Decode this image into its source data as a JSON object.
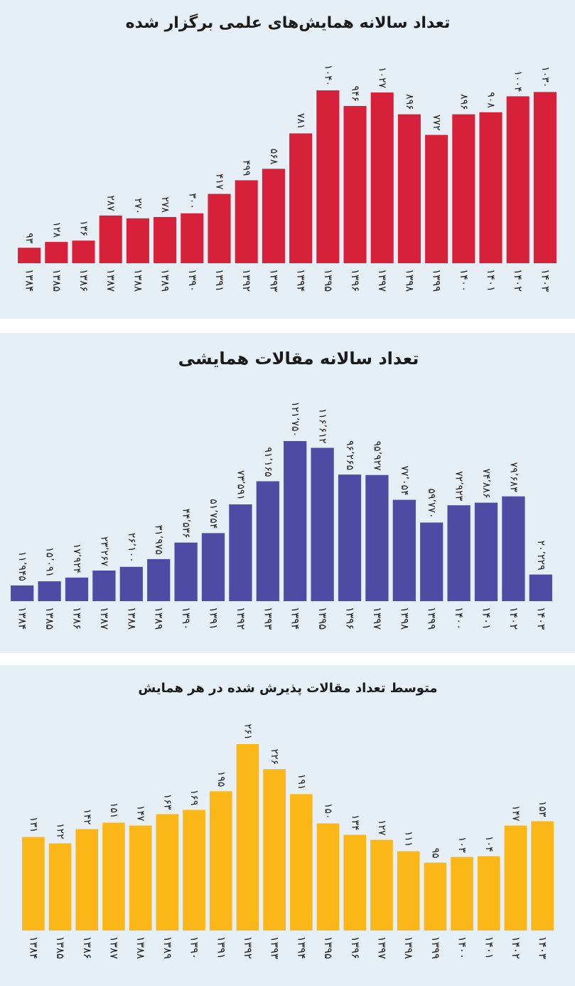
{
  "chart_data": [
    {
      "type": "bar",
      "title": "تعداد سالانه همایش‌های علمی برگزار شده",
      "color": "#d7203a",
      "categories": [
        "۱۳۸۴",
        "۱۳۸۵",
        "۱۳۸۶",
        "۱۳۸۷",
        "۱۳۸۸",
        "۱۳۸۹",
        "۱۳۹۰",
        "۱۳۹۱",
        "۱۳۹۲",
        "۱۳۹۳",
        "۱۳۹۴",
        "۱۳۹۵",
        "۱۳۹۶",
        "۱۳۹۷",
        "۱۳۹۸",
        "۱۳۹۹",
        "۱۴۰۰",
        "۱۴۰۱",
        "۱۴۰۲",
        "۱۴۰۳"
      ],
      "values": [
        93,
        128,
        136,
        287,
        270,
        278,
        300,
        417,
        499,
        568,
        781,
        1040,
        946,
        1027,
        896,
        772,
        896,
        908,
        1004,
        1030
      ],
      "value_labels": [
        "۹۳",
        "۱۲۸",
        "۱۳۶",
        "۲۸۷",
        "۲۷۰",
        "۲۷۸",
        "۳۰۰",
        "۴۱۷",
        "۴۹۹",
        "۵۶۸",
        "۷۸۱",
        "۱۰۴۰",
        "۹۴۶",
        "۱۰۲۷",
        "۸۹۶",
        "۷۷۲",
        "۸۹۶",
        "۹۰۸",
        "۱۰۰۴",
        "۱۰۳۰"
      ]
    },
    {
      "type": "bar",
      "title": "تعداد سالانه مقالات همایشی",
      "color": "#4f4aa3",
      "categories": [
        "۱۳۸۴",
        "۱۳۸۵",
        "۱۳۸۶",
        "۱۳۸۷",
        "۱۳۸۸",
        "۱۳۸۹",
        "۱۳۹۰",
        "۱۳۹۱",
        "۱۳۹۲",
        "۱۳۹۳",
        "۱۳۹۴",
        "۱۳۹۵",
        "۱۳۹۶",
        "۱۳۹۷",
        "۱۳۹۸",
        "۱۳۹۹",
        "۱۴۰۰",
        "۱۴۰۱",
        "۱۴۰۲",
        "۱۴۰۳"
      ],
      "values": [
        11945,
        15091,
        17924,
        23267,
        26100,
        31975,
        44536,
        51754,
        73591,
        91165,
        121750,
        116612,
        96265,
        95927,
        77054,
        59770,
        72923,
        74886,
        79683,
        20229
      ],
      "value_labels": [
        "۱۱٬۹۴۵",
        "۱۵٬۰۹۱",
        "۱۷٬۹۲۴",
        "۲۳٬۲۶۷",
        "۲۶٬۱۰۰",
        "۳۱٬۹۷۵",
        "۴۴٬۵۳۶",
        "۵۱٬۷۵۴",
        "۷۳٬۵۹۱",
        "۹۱٬۱۶۵",
        "۱۲۱٬۷۵۰",
        "۱۱۶٬۶۱۲",
        "۹۶٬۲۶۵",
        "۹۵٬۹۲۷",
        "۷۷٬۰۵۴",
        "۵۹٬۷۷۰",
        "۷۲٬۹۲۳",
        "۷۴٬۸۸۶",
        "۷۹٬۶۸۳",
        "۲۰٬۲۲۹"
      ]
    },
    {
      "type": "bar",
      "title": "متوسط تعداد مقالات پذیرش شده در هر همایش",
      "color": "#fbb718",
      "categories": [
        "۱۳۸۴",
        "۱۳۸۵",
        "۱۳۸۶",
        "۱۳۸۷",
        "۱۳۸۸",
        "۱۳۸۹",
        "۱۳۹۰",
        "۱۳۹۱",
        "۱۳۹۲",
        "۱۳۹۳",
        "۱۳۹۴",
        "۱۳۹۵",
        "۱۳۹۶",
        "۱۳۹۷",
        "۱۳۹۸",
        "۱۳۹۹",
        "۱۴۰۰",
        "۱۴۰۱",
        "۱۴۰۲",
        "۱۴۰۳"
      ],
      "values": [
        131,
        122,
        142,
        151,
        147,
        163,
        169,
        195,
        261,
        226,
        191,
        150,
        134,
        127,
        111,
        95,
        103,
        104,
        147,
        153
      ],
      "value_labels": [
        "۱۳۱",
        "۱۲۲",
        "۱۴۲",
        "۱۵۱",
        "۱۴۷",
        "۱۶۳",
        "۱۶۹",
        "۱۹۵",
        "۲۶۱",
        "۲۲۶",
        "۱۹۱",
        "۱۵۰",
        "۱۳۴",
        "۱۲۷",
        "۱۱۱",
        "۹۵",
        "۱۰۳",
        "۱۰۴",
        "۱۴۷",
        "۱۵۳"
      ]
    }
  ]
}
